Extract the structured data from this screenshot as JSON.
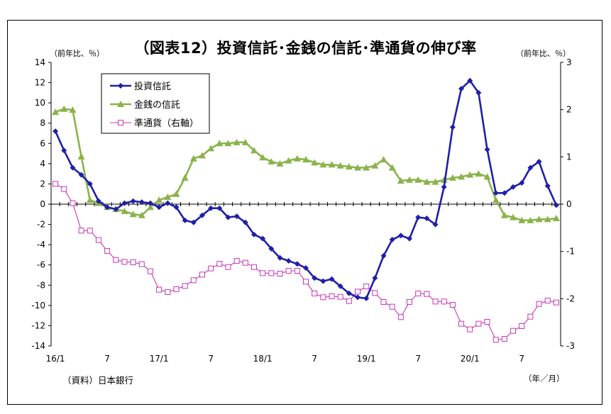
{
  "chart_data": {
    "type": "line",
    "title": "（図表12）投資信託･金銭の信託･準通貨の伸び率",
    "ylabel_left": "（前年比、％）",
    "ylabel_right": "（前年比、％）",
    "xlabel": "（年／月）",
    "source": "（資料）日本銀行",
    "ylim_left": [
      -14,
      14
    ],
    "ylim_right": [
      -3,
      3
    ],
    "yticks_left": [
      14,
      12,
      10,
      8,
      6,
      4,
      2,
      0,
      -2,
      -4,
      -6,
      -8,
      -10,
      -12,
      -14
    ],
    "yticks_right": [
      3,
      2,
      1,
      0,
      -1,
      -2,
      -3
    ],
    "xtick_labels": [
      {
        "label": "16/1",
        "index": 0
      },
      {
        "label": "7",
        "index": 6
      },
      {
        "label": "17/1",
        "index": 12
      },
      {
        "label": "7",
        "index": 18
      },
      {
        "label": "18/1",
        "index": 24
      },
      {
        "label": "7",
        "index": 30
      },
      {
        "label": "19/1",
        "index": 36
      },
      {
        "label": "7",
        "index": 42
      },
      {
        "label": "20/1",
        "index": 48
      },
      {
        "label": "7",
        "index": 54
      }
    ],
    "n_points": 59,
    "legend_position": "top-left",
    "series": [
      {
        "name": "投資信託",
        "axis": "left",
        "color": "#1f1fa8",
        "marker": "diamond",
        "values": [
          7.2,
          5.3,
          3.6,
          2.9,
          2.0,
          0.3,
          -0.3,
          -0.5,
          0.1,
          0.3,
          0.2,
          0.1,
          -0.3,
          0.1,
          -0.3,
          -1.6,
          -1.8,
          -1.1,
          -0.4,
          -0.4,
          -1.3,
          -1.2,
          -1.8,
          -3.0,
          -3.4,
          -4.4,
          -5.3,
          -5.6,
          -5.9,
          -6.3,
          -7.3,
          -7.6,
          -7.4,
          -8.1,
          -8.8,
          -9.2,
          -9.3,
          -7.3,
          -5.1,
          -3.5,
          -3.1,
          -3.4,
          -1.3,
          -1.4,
          -2.0,
          1.7,
          7.6,
          11.4,
          12.2,
          11.0,
          5.4,
          1.1,
          1.1,
          1.7,
          2.1,
          3.6,
          4.2,
          1.8,
          -0.1
        ]
      },
      {
        "name": "金銭の信託",
        "axis": "left",
        "color": "#8ab34a",
        "marker": "triangle",
        "values": [
          9.1,
          9.4,
          9.3,
          4.7,
          0.4,
          0.1,
          -0.3,
          -0.5,
          -0.7,
          -1.0,
          -1.1,
          -0.3,
          0.4,
          0.7,
          1.0,
          2.6,
          4.5,
          4.8,
          5.5,
          6.0,
          6.0,
          6.1,
          6.1,
          5.3,
          4.6,
          4.2,
          4.0,
          4.3,
          4.5,
          4.4,
          4.1,
          3.9,
          3.9,
          3.8,
          3.7,
          3.6,
          3.6,
          3.8,
          4.4,
          3.6,
          2.3,
          2.4,
          2.4,
          2.2,
          2.2,
          2.4,
          2.6,
          2.7,
          2.9,
          3.0,
          2.7,
          0.4,
          -1.1,
          -1.3,
          -1.6,
          -1.6,
          -1.5,
          -1.5,
          -1.4
        ]
      },
      {
        "name": "準通貨（右軸）",
        "axis": "right",
        "color": "#c838b8",
        "marker": "square-open",
        "values": [
          0.43,
          0.32,
          0.02,
          -0.56,
          -0.56,
          -0.76,
          -0.99,
          -1.18,
          -1.22,
          -1.23,
          -1.27,
          -1.42,
          -1.81,
          -1.86,
          -1.8,
          -1.73,
          -1.61,
          -1.49,
          -1.36,
          -1.26,
          -1.33,
          -1.2,
          -1.24,
          -1.33,
          -1.46,
          -1.46,
          -1.47,
          -1.41,
          -1.41,
          -1.64,
          -1.89,
          -1.97,
          -1.95,
          -1.96,
          -2.05,
          -1.85,
          -1.74,
          -1.88,
          -2.07,
          -2.17,
          -2.39,
          -2.07,
          -1.89,
          -1.9,
          -2.06,
          -2.06,
          -2.13,
          -2.53,
          -2.65,
          -2.53,
          -2.49,
          -2.87,
          -2.85,
          -2.68,
          -2.58,
          -2.38,
          -2.11,
          -2.04,
          -2.08
        ]
      }
    ]
  }
}
